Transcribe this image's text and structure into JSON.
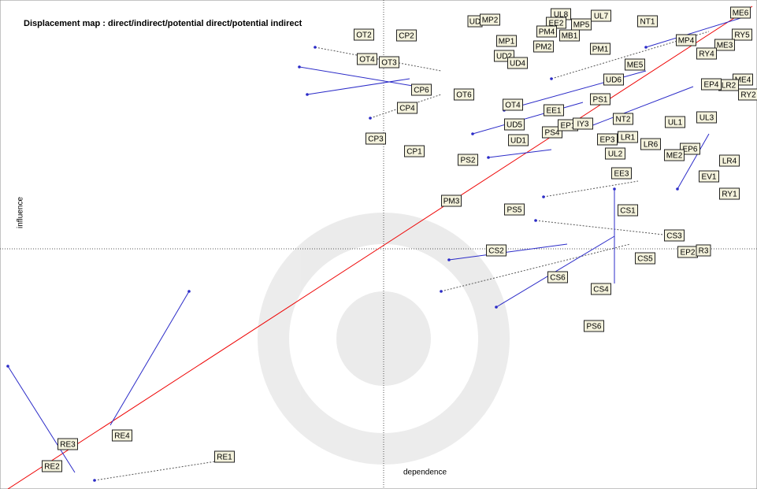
{
  "title": "Displacement map :  direct/indirect/potential direct/potential indirect",
  "x_axis_label": "dependence",
  "y_axis_label": "influence",
  "nodes": [
    {
      "label": "UD"
    },
    {
      "label": "MP2"
    },
    {
      "label": "UL8"
    },
    {
      "label": "EE2"
    },
    {
      "label": "PM4"
    },
    {
      "label": "MP5"
    },
    {
      "label": "MB1"
    },
    {
      "label": "UL7"
    },
    {
      "label": "NT1"
    },
    {
      "label": "ME6"
    },
    {
      "label": "RY5"
    },
    {
      "label": "ME3"
    },
    {
      "label": "RY4"
    },
    {
      "label": "MP4"
    },
    {
      "label": "ME4"
    },
    {
      "label": "RY2"
    },
    {
      "label": "LR2"
    },
    {
      "label": "EP4"
    },
    {
      "label": "UL3"
    },
    {
      "label": "LR4"
    },
    {
      "label": "EV1"
    },
    {
      "label": "RY1"
    },
    {
      "label": "EP6"
    },
    {
      "label": "ME2"
    },
    {
      "label": "LR6"
    },
    {
      "label": "UL1"
    },
    {
      "label": "NT2"
    },
    {
      "label": "LR1"
    },
    {
      "label": "EP3"
    },
    {
      "label": "UL2"
    },
    {
      "label": "EE3"
    },
    {
      "label": "CS1"
    },
    {
      "label": "CS3"
    },
    {
      "label": "EP2"
    },
    {
      "label": "R3"
    },
    {
      "label": "CS5"
    },
    {
      "label": "CS4"
    },
    {
      "label": "CS6"
    },
    {
      "label": "PS6"
    },
    {
      "label": "CS2"
    },
    {
      "label": "PS5"
    },
    {
      "label": "PM3"
    },
    {
      "label": "PS2"
    },
    {
      "label": "CP1"
    },
    {
      "label": "CP3"
    },
    {
      "label": "UD1"
    },
    {
      "label": "UD5"
    },
    {
      "label": "PS4"
    },
    {
      "label": "EP1"
    },
    {
      "label": "IY3"
    },
    {
      "label": "EE1"
    },
    {
      "label": "OT4"
    },
    {
      "label": "OT6"
    },
    {
      "label": "PS1"
    },
    {
      "label": "UD6"
    },
    {
      "label": "ME5"
    },
    {
      "label": "PM1"
    },
    {
      "label": "MP1"
    },
    {
      "label": "UD2"
    },
    {
      "label": "UD4"
    },
    {
      "label": "PM2"
    },
    {
      "label": "CP6"
    },
    {
      "label": "CP4"
    },
    {
      "label": "OT3"
    },
    {
      "label": "OT4"
    },
    {
      "label": "OT2"
    },
    {
      "label": "CP2"
    },
    {
      "label": "RE3"
    },
    {
      "label": "RE2"
    },
    {
      "label": "RE4"
    },
    {
      "label": "RE1"
    }
  ]
}
